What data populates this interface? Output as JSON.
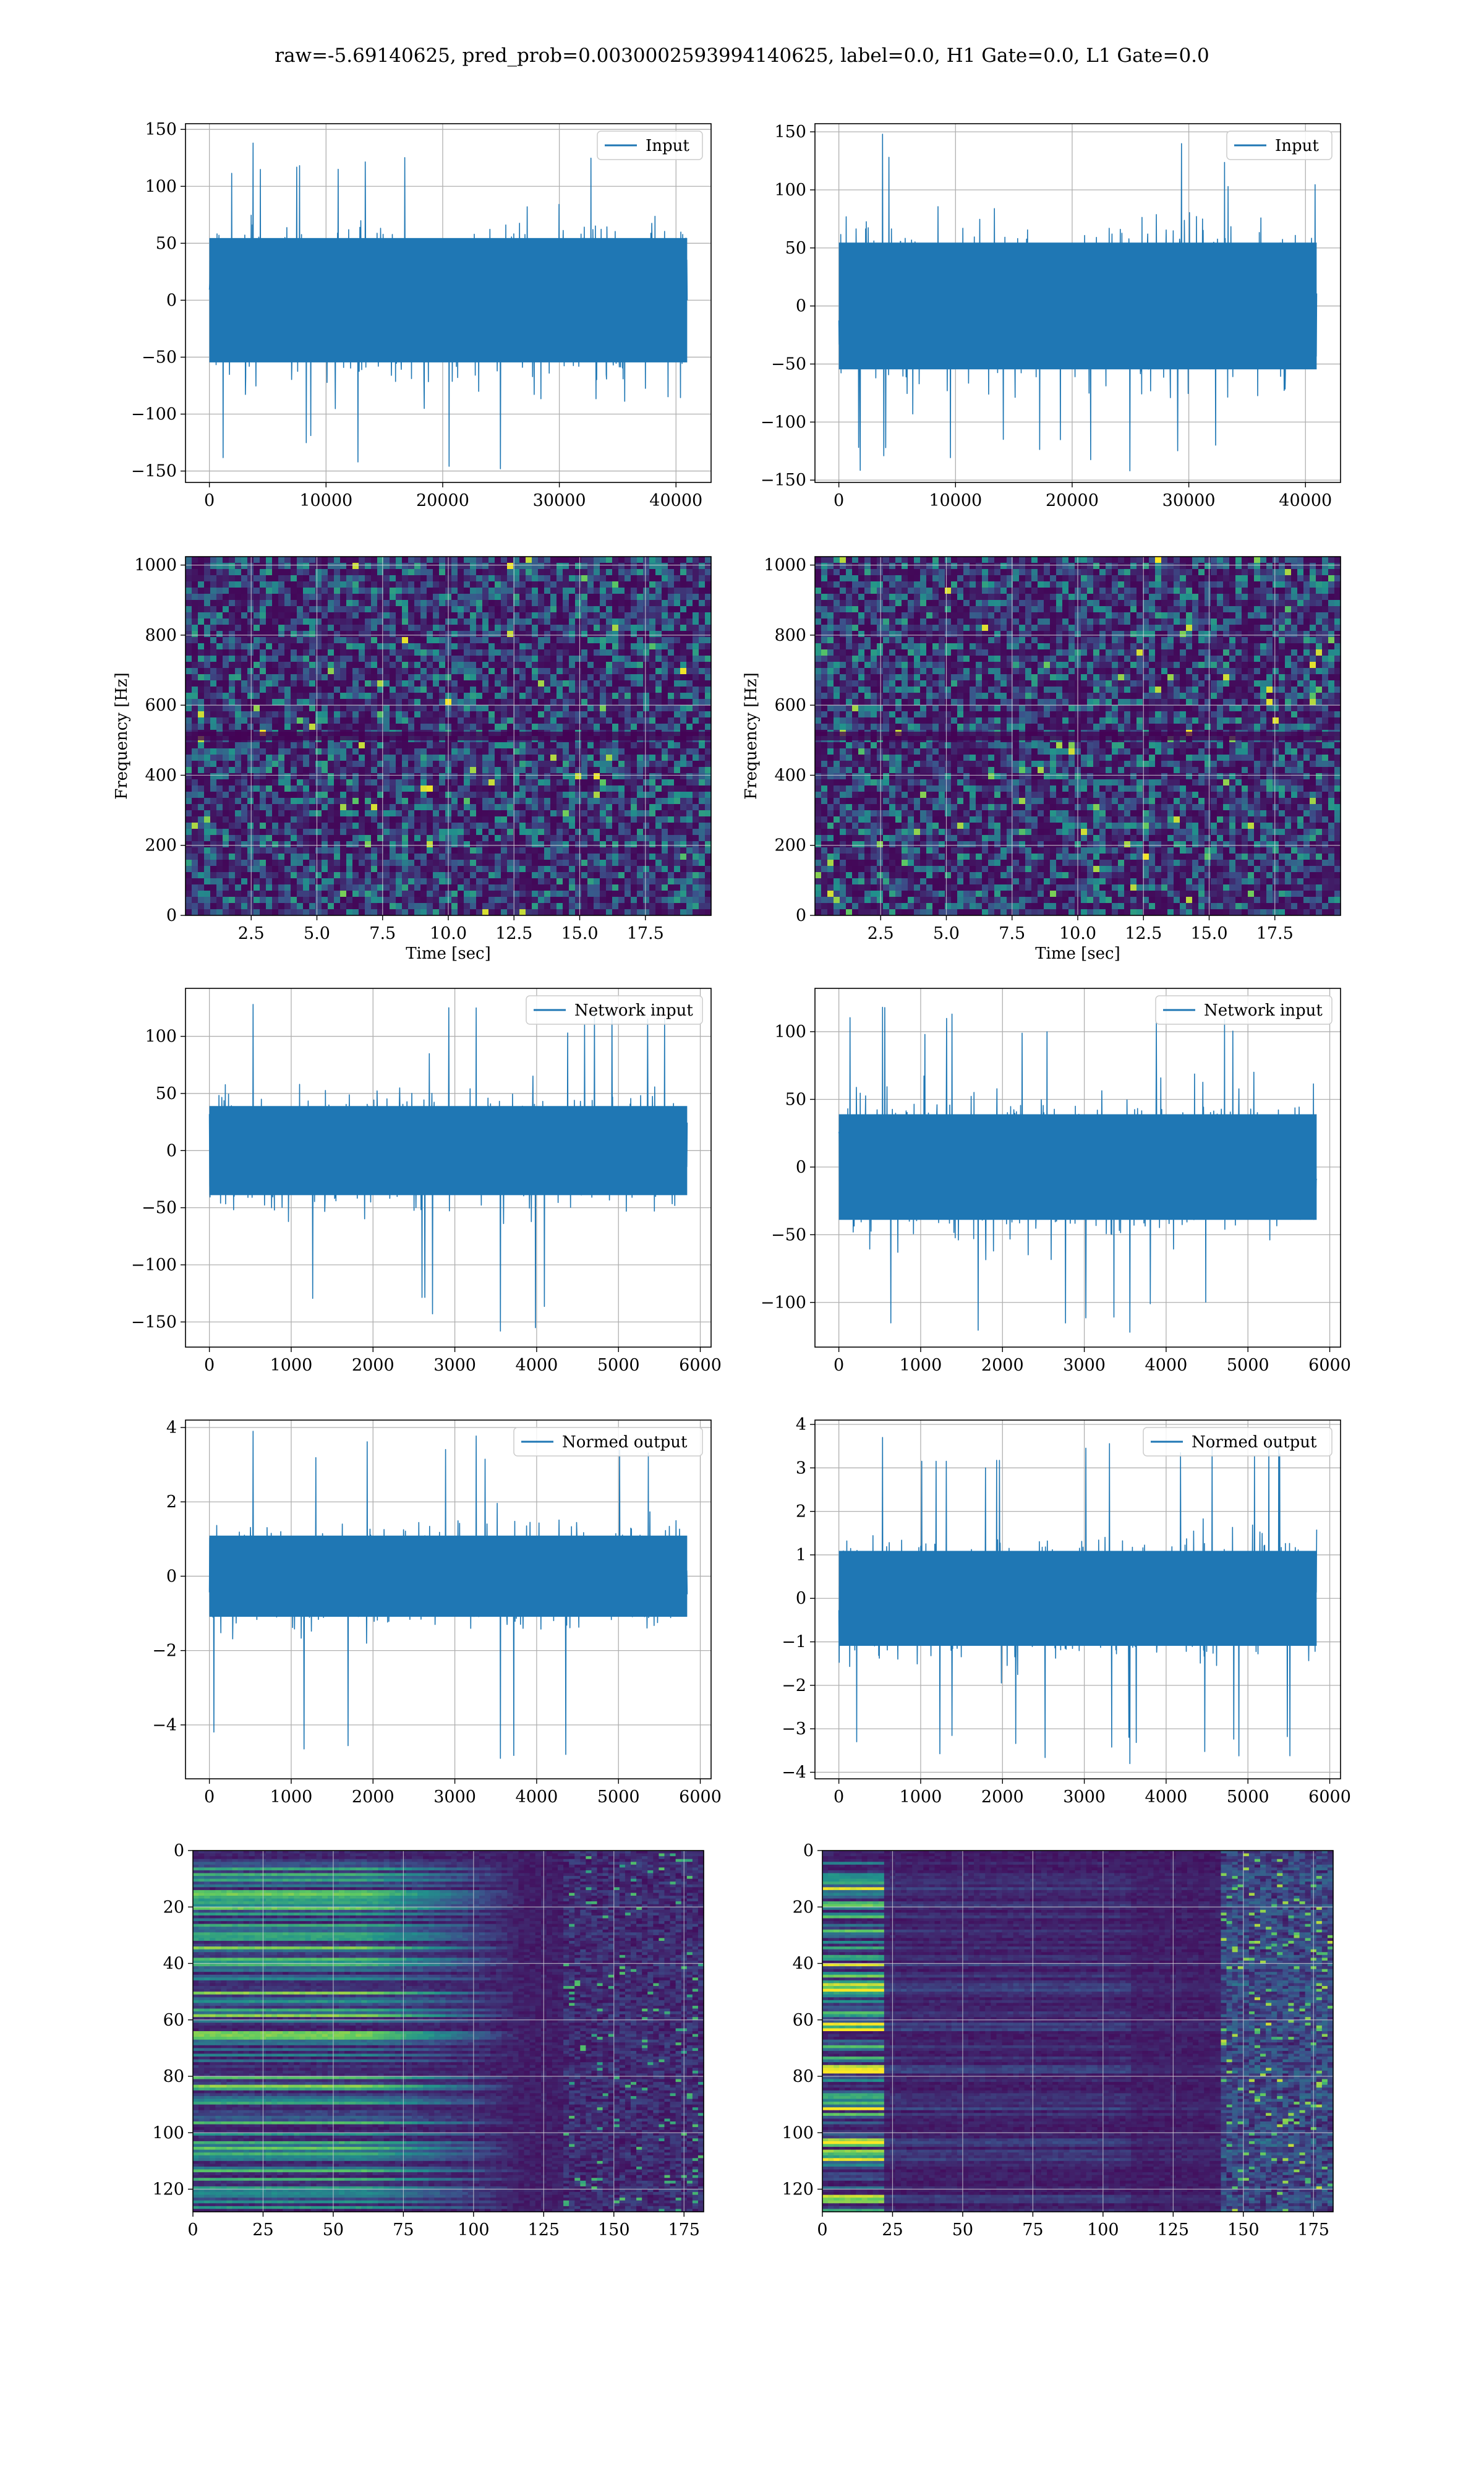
{
  "suptitle": "raw=-5.69140625, pred_prob=0.0030002593994140625, label=0.0, H1 Gate=0.0, L1 Gate=0.0",
  "colors": {
    "line": "#1f77b4",
    "grid": "#b0b0b0",
    "heatmap_low": "#440154",
    "heatmap_mid": "#21918c",
    "heatmap_high": "#fde725"
  },
  "chart_data": [
    {
      "id": "r1-left",
      "type": "line",
      "legend": "Input",
      "x_range": [
        0,
        40960
      ],
      "ylim": [
        -160,
        155
      ],
      "amplitude": 92,
      "xticks": [
        0,
        10000,
        20000,
        30000,
        40000
      ],
      "yticks": [
        -150,
        -100,
        -50,
        0,
        50,
        100,
        150
      ],
      "series": [
        {
          "name": "Input",
          "x_start": 0,
          "x_end": 40960,
          "amp_typical": 70,
          "peak_max": 138,
          "peak_min": -148
        }
      ]
    },
    {
      "id": "r1-right",
      "type": "line",
      "legend": "Input",
      "x_range": [
        0,
        40960
      ],
      "ylim": [
        -152,
        157
      ],
      "amplitude": 92,
      "xticks": [
        0,
        10000,
        20000,
        30000,
        40000
      ],
      "yticks": [
        -150,
        -100,
        -50,
        0,
        50,
        100,
        150
      ],
      "series": [
        {
          "name": "Input",
          "x_start": 0,
          "x_end": 40960,
          "amp_typical": 70,
          "peak_max": 148,
          "peak_min": -142
        }
      ]
    },
    {
      "id": "r2-left",
      "type": "heatmap",
      "ylabel": "Frequency [Hz]",
      "xlabel": "Time [sec]",
      "xlim": [
        0,
        20
      ],
      "ylim": [
        0,
        1024
      ],
      "xticks": [
        "2.5",
        "5.0",
        "7.5",
        "10.0",
        "12.5",
        "15.0",
        "17.5"
      ],
      "yticks": [
        "0",
        "200",
        "400",
        "600",
        "800",
        "1000"
      ]
    },
    {
      "id": "r2-right",
      "type": "heatmap",
      "ylabel": "Frequency [Hz]",
      "xlabel": "Time [sec]",
      "xlim": [
        0,
        20
      ],
      "ylim": [
        0,
        1024
      ],
      "xticks": [
        "2.5",
        "5.0",
        "7.5",
        "10.0",
        "12.5",
        "15.0",
        "17.5"
      ],
      "yticks": [
        "0",
        "200",
        "400",
        "600",
        "800",
        "1000"
      ]
    },
    {
      "id": "r3-left",
      "type": "line",
      "legend": "Network input",
      "x_range": [
        0,
        5840
      ],
      "ylim": [
        -172,
        142
      ],
      "amplitude": 62,
      "xticks": [
        0,
        1000,
        2000,
        3000,
        4000,
        5000,
        6000
      ],
      "yticks": [
        -150,
        -100,
        -50,
        0,
        50,
        100
      ],
      "series": [
        {
          "name": "Network input",
          "x_start": 0,
          "x_end": 5840,
          "amp_typical": 50,
          "peak_max": 128,
          "peak_min": -158
        }
      ]
    },
    {
      "id": "r3-right",
      "type": "line",
      "legend": "Network input",
      "x_range": [
        0,
        5840
      ],
      "ylim": [
        -133,
        132
      ],
      "amplitude": 62,
      "xticks": [
        0,
        1000,
        2000,
        3000,
        4000,
        5000,
        6000
      ],
      "yticks": [
        -100,
        -50,
        0,
        50,
        100
      ],
      "series": [
        {
          "name": "Network input",
          "x_start": 0,
          "x_end": 5840,
          "amp_typical": 50,
          "peak_max": 118,
          "peak_min": -122
        }
      ]
    },
    {
      "id": "r4-left",
      "type": "line",
      "legend": "Normed output",
      "x_range": [
        0,
        5840
      ],
      "ylim": [
        -5.45,
        4.2
      ],
      "amplitude": 1.7,
      "xticks": [
        0,
        1000,
        2000,
        3000,
        4000,
        5000,
        6000
      ],
      "yticks": [
        -4,
        -2,
        0,
        2,
        4
      ],
      "series": [
        {
          "name": "Normed output",
          "x_start": 0,
          "x_end": 5840,
          "amp_typical": 1.4,
          "peak_max": 3.9,
          "peak_min": -4.9
        }
      ]
    },
    {
      "id": "r4-right",
      "type": "line",
      "legend": "Normed output",
      "x_range": [
        0,
        5840
      ],
      "ylim": [
        -4.15,
        4.1
      ],
      "amplitude": 1.7,
      "xticks": [
        0,
        1000,
        2000,
        3000,
        4000,
        5000,
        6000
      ],
      "yticks": [
        -4,
        -3,
        -2,
        -1,
        0,
        1,
        2,
        3,
        4
      ],
      "series": [
        {
          "name": "Normed output",
          "x_start": 0,
          "x_end": 5840,
          "amp_typical": 1.4,
          "peak_max": 3.7,
          "peak_min": -3.8
        }
      ]
    },
    {
      "id": "r5-left",
      "type": "heatmap",
      "origin": "upper",
      "xlim": [
        0,
        182
      ],
      "ylim": [
        128,
        0
      ],
      "xticks": [
        "0",
        "25",
        "50",
        "75",
        "100",
        "125",
        "150",
        "175"
      ],
      "yticks": [
        "0",
        "20",
        "40",
        "60",
        "80",
        "100",
        "120"
      ]
    },
    {
      "id": "r5-right",
      "type": "heatmap",
      "origin": "upper",
      "xlim": [
        0,
        182
      ],
      "ylim": [
        128,
        0
      ],
      "xticks": [
        "0",
        "25",
        "50",
        "75",
        "100",
        "125",
        "150",
        "175"
      ],
      "yticks": [
        "0",
        "20",
        "40",
        "60",
        "80",
        "100",
        "120"
      ]
    }
  ]
}
